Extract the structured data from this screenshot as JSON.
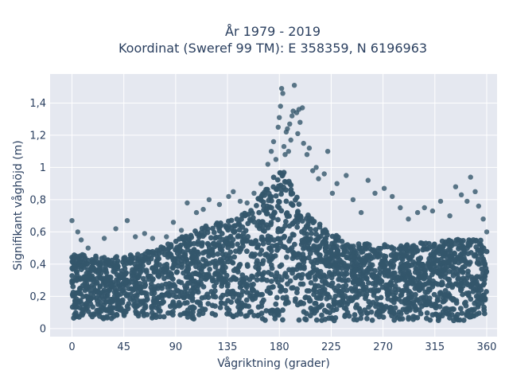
{
  "chart_data": {
    "type": "scatter",
    "title_line1": "År 1979 - 2019",
    "title_line2": "Koordinat (Sweref 99 TM): E 358359, N 6196963",
    "xlabel": "Vågriktning (grader)",
    "ylabel": "Signifikant våghöjd (m)",
    "xlim": [
      -19,
      369
    ],
    "ylim": [
      -0.05,
      1.58
    ],
    "x_ticks": [
      0,
      45,
      90,
      135,
      180,
      225,
      270,
      315,
      360
    ],
    "x_tick_labels": [
      "0",
      "45",
      "90",
      "135",
      "180",
      "225",
      "270",
      "315",
      "360"
    ],
    "y_ticks": [
      0,
      0.2,
      0.4,
      0.6,
      0.8,
      1.0,
      1.2,
      1.4
    ],
    "y_tick_labels": [
      "0",
      "0,2",
      "0,4",
      "0,6",
      "0,8",
      "1",
      "1,2",
      "1,4"
    ],
    "grid": true,
    "marker_color": "#34566b",
    "background_color": "#e5e8f0",
    "envelope": {
      "x": [
        0,
        10,
        20,
        30,
        45,
        60,
        75,
        90,
        105,
        120,
        135,
        150,
        160,
        170,
        175,
        180,
        185,
        190,
        195,
        200,
        210,
        220,
        230,
        240,
        255,
        270,
        285,
        300,
        315,
        330,
        345,
        355,
        360
      ],
      "y_upper": [
        0.47,
        0.46,
        0.45,
        0.44,
        0.45,
        0.47,
        0.5,
        0.55,
        0.6,
        0.65,
        0.68,
        0.72,
        0.8,
        0.88,
        0.95,
        1.0,
        0.98,
        0.9,
        0.82,
        0.75,
        0.68,
        0.62,
        0.58,
        0.55,
        0.53,
        0.52,
        0.52,
        0.53,
        0.54,
        0.55,
        0.56,
        0.55,
        0.48
      ],
      "y_lower": [
        0.06,
        0.06,
        0.06,
        0.06,
        0.06,
        0.06,
        0.06,
        0.06,
        0.06,
        0.06,
        0.06,
        0.06,
        0.05,
        0.05,
        0.04,
        0.03,
        0.03,
        0.04,
        0.05,
        0.05,
        0.05,
        0.05,
        0.05,
        0.05,
        0.05,
        0.05,
        0.05,
        0.05,
        0.05,
        0.05,
        0.05,
        0.06,
        0.07
      ]
    },
    "outliers": [
      {
        "x": 0,
        "y": 0.67
      },
      {
        "x": 5,
        "y": 0.6
      },
      {
        "x": 8,
        "y": 0.55
      },
      {
        "x": 14,
        "y": 0.5
      },
      {
        "x": 28,
        "y": 0.56
      },
      {
        "x": 38,
        "y": 0.62
      },
      {
        "x": 48,
        "y": 0.67
      },
      {
        "x": 55,
        "y": 0.57
      },
      {
        "x": 63,
        "y": 0.59
      },
      {
        "x": 70,
        "y": 0.56
      },
      {
        "x": 82,
        "y": 0.57
      },
      {
        "x": 88,
        "y": 0.66
      },
      {
        "x": 95,
        "y": 0.61
      },
      {
        "x": 100,
        "y": 0.78
      },
      {
        "x": 108,
        "y": 0.72
      },
      {
        "x": 114,
        "y": 0.74
      },
      {
        "x": 119,
        "y": 0.8
      },
      {
        "x": 128,
        "y": 0.77
      },
      {
        "x": 136,
        "y": 0.82
      },
      {
        "x": 140,
        "y": 0.85
      },
      {
        "x": 146,
        "y": 0.79
      },
      {
        "x": 152,
        "y": 0.78
      },
      {
        "x": 158,
        "y": 0.84
      },
      {
        "x": 164,
        "y": 0.9
      },
      {
        "x": 170,
        "y": 1.02
      },
      {
        "x": 173,
        "y": 1.1
      },
      {
        "x": 175,
        "y": 1.16
      },
      {
        "x": 177,
        "y": 1.05
      },
      {
        "x": 179,
        "y": 1.25
      },
      {
        "x": 180,
        "y": 1.31
      },
      {
        "x": 181,
        "y": 1.38
      },
      {
        "x": 182,
        "y": 1.49
      },
      {
        "x": 183,
        "y": 1.46
      },
      {
        "x": 184,
        "y": 1.13
      },
      {
        "x": 185,
        "y": 1.08
      },
      {
        "x": 186,
        "y": 1.22
      },
      {
        "x": 187,
        "y": 1.24
      },
      {
        "x": 188,
        "y": 1.1
      },
      {
        "x": 189,
        "y": 1.27
      },
      {
        "x": 190,
        "y": 1.17
      },
      {
        "x": 191,
        "y": 1.32
      },
      {
        "x": 192,
        "y": 1.35
      },
      {
        "x": 193,
        "y": 1.51
      },
      {
        "x": 195,
        "y": 1.34
      },
      {
        "x": 196,
        "y": 1.21
      },
      {
        "x": 197,
        "y": 1.36
      },
      {
        "x": 198,
        "y": 1.28
      },
      {
        "x": 200,
        "y": 1.37
      },
      {
        "x": 201,
        "y": 1.15
      },
      {
        "x": 204,
        "y": 1.08
      },
      {
        "x": 206,
        "y": 1.12
      },
      {
        "x": 209,
        "y": 0.98
      },
      {
        "x": 212,
        "y": 1.0
      },
      {
        "x": 214,
        "y": 0.93
      },
      {
        "x": 219,
        "y": 0.96
      },
      {
        "x": 222,
        "y": 1.1
      },
      {
        "x": 226,
        "y": 0.84
      },
      {
        "x": 230,
        "y": 0.9
      },
      {
        "x": 238,
        "y": 0.95
      },
      {
        "x": 244,
        "y": 0.8
      },
      {
        "x": 251,
        "y": 0.72
      },
      {
        "x": 257,
        "y": 0.92
      },
      {
        "x": 263,
        "y": 0.84
      },
      {
        "x": 271,
        "y": 0.87
      },
      {
        "x": 278,
        "y": 0.82
      },
      {
        "x": 285,
        "y": 0.75
      },
      {
        "x": 292,
        "y": 0.68
      },
      {
        "x": 300,
        "y": 0.72
      },
      {
        "x": 306,
        "y": 0.75
      },
      {
        "x": 313,
        "y": 0.73
      },
      {
        "x": 320,
        "y": 0.79
      },
      {
        "x": 328,
        "y": 0.7
      },
      {
        "x": 333,
        "y": 0.88
      },
      {
        "x": 338,
        "y": 0.83
      },
      {
        "x": 343,
        "y": 0.79
      },
      {
        "x": 346,
        "y": 0.94
      },
      {
        "x": 350,
        "y": 0.85
      },
      {
        "x": 353,
        "y": 0.76
      },
      {
        "x": 357,
        "y": 0.68
      },
      {
        "x": 360,
        "y": 0.6
      }
    ]
  }
}
